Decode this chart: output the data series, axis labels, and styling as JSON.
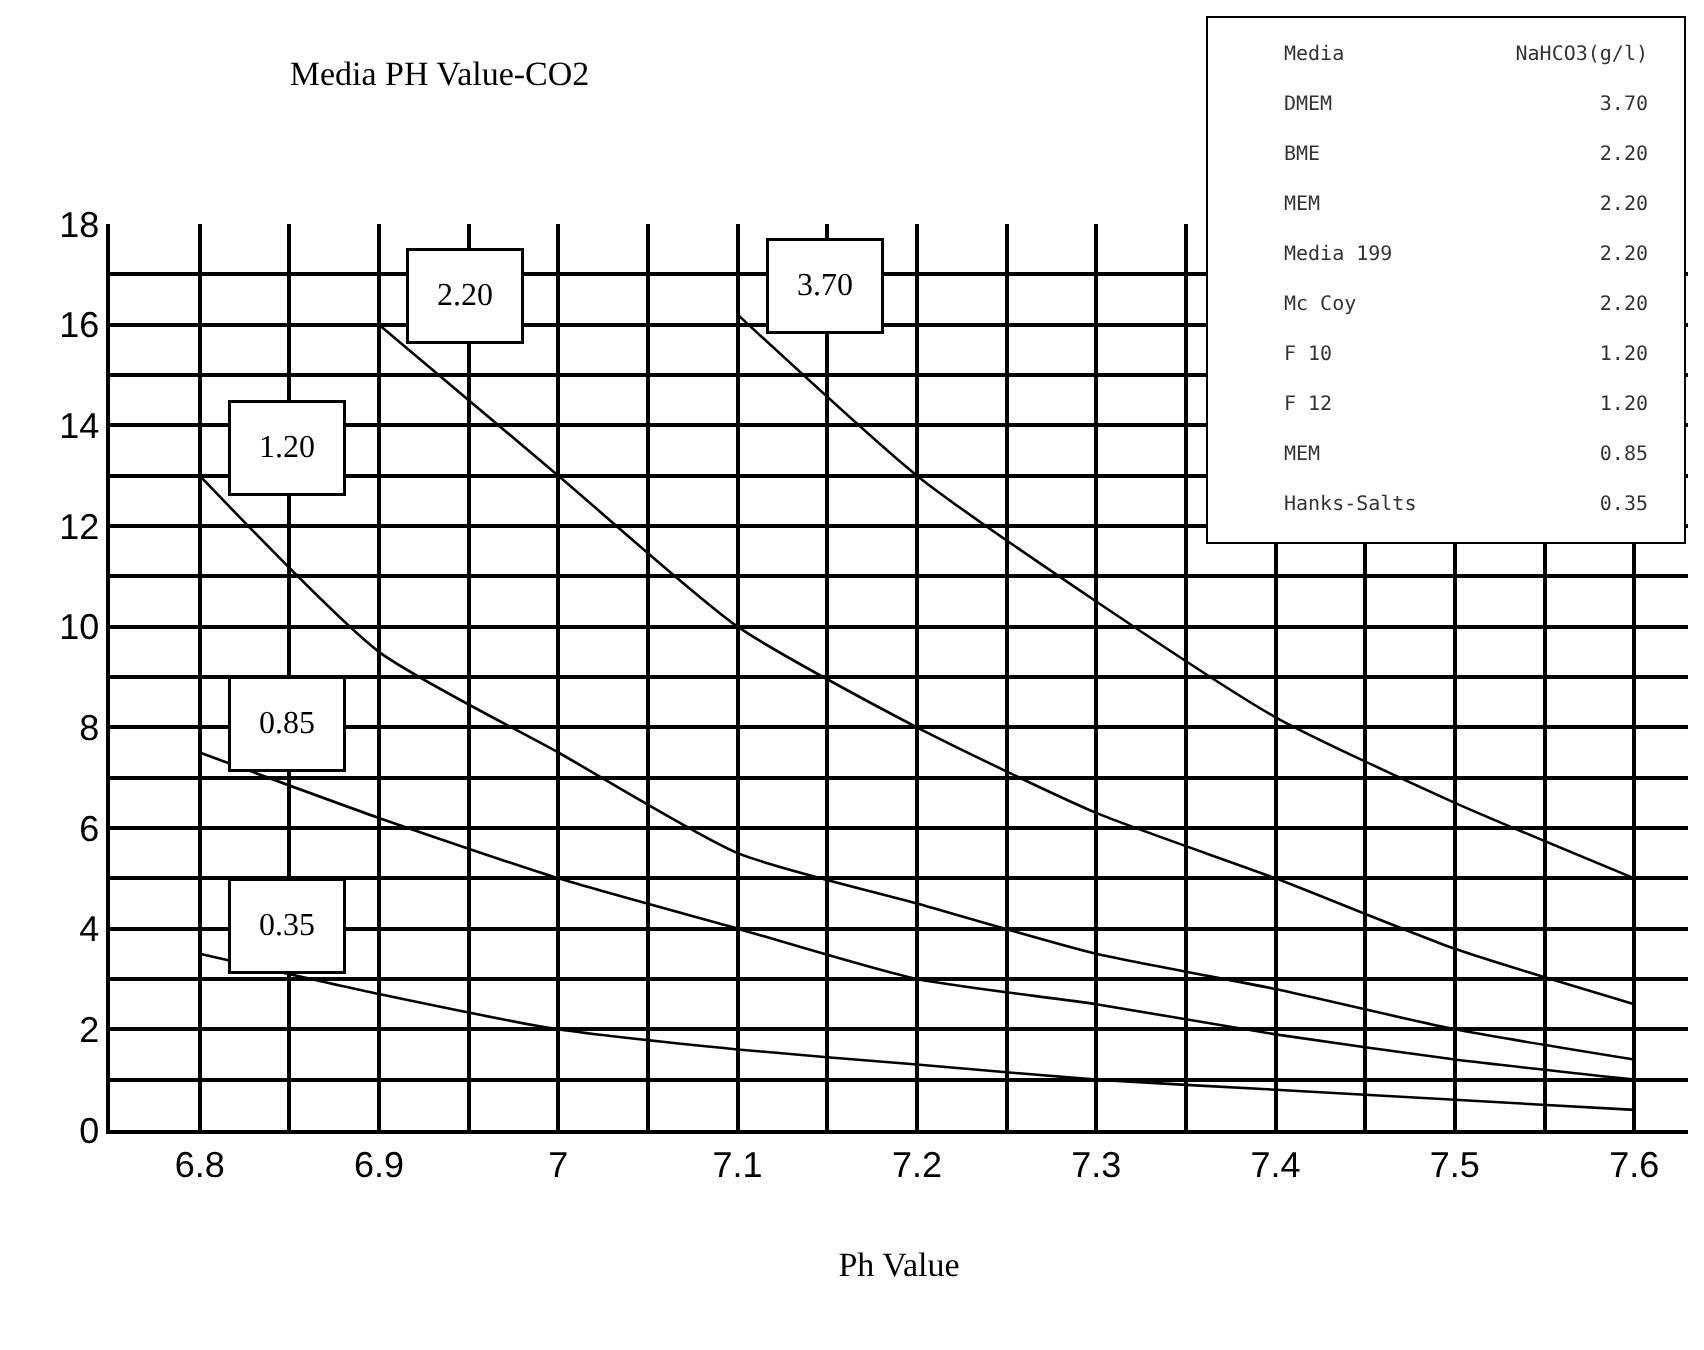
{
  "chart_data": {
    "type": "line",
    "title": "Media PH Value-CO2",
    "xlabel": "Ph Value",
    "x": [
      6.8,
      6.9,
      7.0,
      7.1,
      7.2,
      7.3,
      7.4,
      7.5,
      7.6
    ],
    "series": [
      {
        "name": "3.70",
        "color": "#000000",
        "values": [
          null,
          null,
          null,
          16.2,
          13,
          10.5,
          8.2,
          6.5,
          5
        ]
      },
      {
        "name": "2.20",
        "color": "#000000",
        "values": [
          null,
          16,
          13,
          10,
          8,
          6.3,
          5,
          3.6,
          2.5
        ]
      },
      {
        "name": "1.20",
        "color": "#000000",
        "values": [
          13,
          9.5,
          7.5,
          5.5,
          4.5,
          3.5,
          2.8,
          2,
          1.4
        ]
      },
      {
        "name": "0.85",
        "color": "#000000",
        "values": [
          7.5,
          6.2,
          5,
          4,
          3,
          2.5,
          1.9,
          1.4,
          1
        ]
      },
      {
        "name": "0.35",
        "color": "#000000",
        "values": [
          3.5,
          2.7,
          2,
          1.6,
          1.3,
          1,
          0.8,
          0.6,
          0.4
        ]
      }
    ],
    "xlim": [
      6.75,
      7.63
    ],
    "ylim": [
      0,
      18
    ],
    "xticks": [
      6.8,
      {
        "value": 6.85,
        "label": null
      },
      6.9,
      {
        "value": 6.95,
        "label": null
      },
      7,
      {
        "value": 7.05,
        "label": null
      },
      7.1,
      {
        "value": 7.15,
        "label": null
      },
      7.2,
      {
        "value": 7.25,
        "label": null
      },
      7.3,
      {
        "value": 7.35,
        "label": null
      },
      7.4,
      {
        "value": 7.45,
        "label": null
      },
      7.5,
      {
        "value": 7.55,
        "label": null
      },
      7.6
    ],
    "yticks": [
      0,
      {
        "value": 1,
        "label": null
      },
      2,
      {
        "value": 3,
        "label": null
      },
      4,
      {
        "value": 5,
        "label": null
      },
      6,
      {
        "value": 7,
        "label": null
      },
      8,
      {
        "value": 9,
        "label": null
      },
      10,
      {
        "value": 11,
        "label": null
      },
      12,
      {
        "value": 13,
        "label": null
      },
      14,
      {
        "value": 15,
        "label": null
      },
      16,
      {
        "value": 17,
        "label": null
      },
      18
    ],
    "grid": true,
    "marker": "none",
    "line_style": "solid",
    "annotations": [
      "Media",
      "NaHCO3(g/l)",
      "DMEM",
      "3.70",
      "BME",
      "2.20",
      "MEM",
      "2.20",
      "Media 199",
      "2.20",
      "Mc Coy",
      "2.20",
      "F 10",
      "1.20",
      "F 12",
      "1.20",
      "MEM",
      "0.85",
      "Hanks-Salts",
      "0.35"
    ]
  }
}
